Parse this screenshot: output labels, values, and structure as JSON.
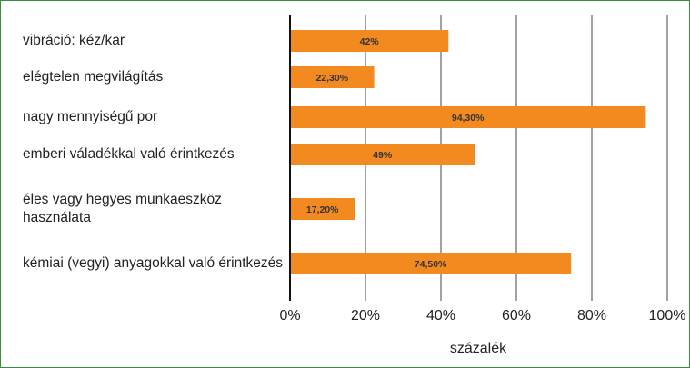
{
  "chart_data": {
    "type": "bar",
    "orientation": "horizontal",
    "categories": [
      "vibráció: kéz/kar",
      "elégtelen megvilágítás",
      "nagy mennyiségű por",
      "emberi váladékkal való érintkezés",
      "éles vagy hegyes munkaeszköz használata",
      "kémiai (vegyi) anyagokkal való érintkezés"
    ],
    "values": [
      42,
      22.3,
      94.3,
      49,
      17.2,
      74.5
    ],
    "value_labels": [
      "42%",
      "22,30%",
      "94,30%",
      "49%",
      "17,20%",
      "74,50%"
    ],
    "color": "#f28a1f",
    "xlabel": "százalék",
    "xlim": [
      0,
      100
    ],
    "xticks": [
      {
        "value": 0,
        "label": "0%"
      },
      {
        "value": 20,
        "label": "20%"
      },
      {
        "value": 40,
        "label": "40%"
      },
      {
        "value": 60,
        "label": "60%"
      },
      {
        "value": 80,
        "label": "80%"
      },
      {
        "value": 100,
        "label": "100%"
      }
    ],
    "grid": true
  }
}
